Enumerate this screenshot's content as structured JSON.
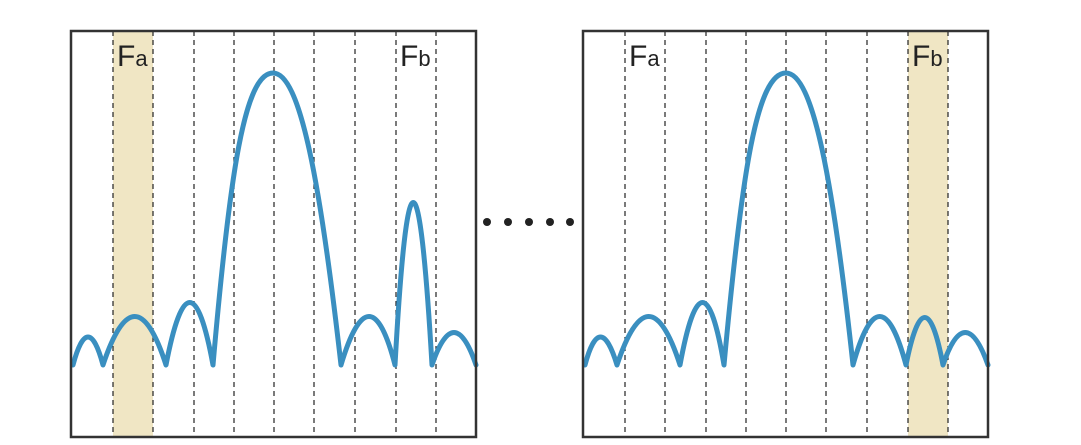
{
  "panels": [
    {
      "labels": [
        {
          "main": "F",
          "sub": "a"
        },
        {
          "main": "F",
          "sub": "b"
        }
      ]
    },
    {
      "labels": [
        {
          "main": "F",
          "sub": "a"
        },
        {
          "main": "F",
          "sub": "b"
        }
      ]
    }
  ]
}
